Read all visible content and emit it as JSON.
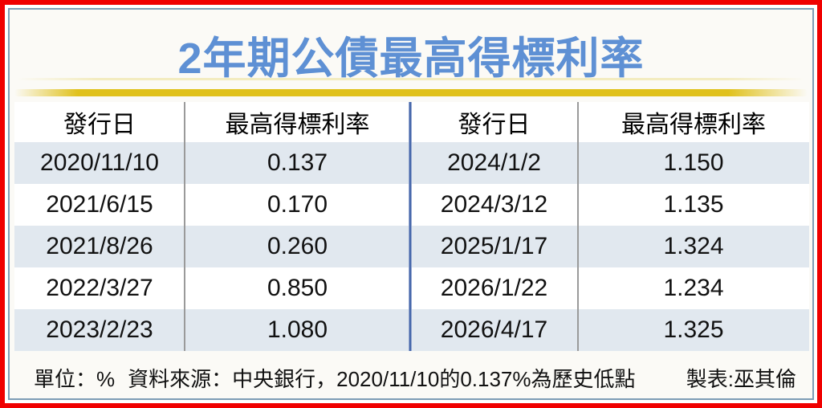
{
  "title": "2年期公債最高得標利率",
  "table": {
    "headers": [
      "發行日",
      "最高得標利率",
      "發行日",
      "最高得標利率"
    ],
    "rows": [
      [
        "2020/11/10",
        "0.137",
        "2024/1/2",
        "1.150"
      ],
      [
        "2021/6/15",
        "0.170",
        "2024/3/12",
        "1.135"
      ],
      [
        "2021/8/26",
        "0.260",
        "2025/1/17",
        "1.324"
      ],
      [
        "2022/3/27",
        "0.850",
        "2026/1/22",
        "1.234"
      ],
      [
        "2023/2/23",
        "1.080",
        "2026/4/17",
        "1.325"
      ]
    ]
  },
  "footer": {
    "unit": "單位：%",
    "source": "資料來源：中央銀行，2020/11/10的0.137%為歷史低點",
    "credit": "製表:巫其倫"
  },
  "colors": {
    "outer_border": "#f00000",
    "inner_border": "#7d9cb5",
    "title_text": "#5e90d4",
    "gold_bar": "#e0c11c",
    "row_stripe": "#e1e8ef",
    "blue_divider": "#4466aa",
    "gray_divider": "#9a9a9a"
  },
  "chart_data": {
    "type": "table",
    "title": "2年期公債最高得標利率",
    "unit": "%",
    "columns": [
      "發行日",
      "最高得標利率"
    ],
    "records": [
      {
        "發行日": "2020/11/10",
        "最高得標利率": 0.137
      },
      {
        "發行日": "2021/6/15",
        "最高得標利率": 0.17
      },
      {
        "發行日": "2021/8/26",
        "最高得標利率": 0.26
      },
      {
        "發行日": "2022/3/27",
        "最高得標利率": 0.85
      },
      {
        "發行日": "2023/2/23",
        "最高得標利率": 1.08
      },
      {
        "發行日": "2024/1/2",
        "最高得標利率": 1.15
      },
      {
        "發行日": "2024/3/12",
        "最高得標利率": 1.135
      },
      {
        "發行日": "2025/1/17",
        "最高得標利率": 1.324
      },
      {
        "發行日": "2026/1/22",
        "最高得標利率": 1.234
      },
      {
        "發行日": "2026/4/17",
        "最高得標利率": 1.325
      }
    ],
    "notes": "2020/11/10的0.137%為歷史低點",
    "source": "中央銀行",
    "credit": "製表:巫其倫"
  }
}
